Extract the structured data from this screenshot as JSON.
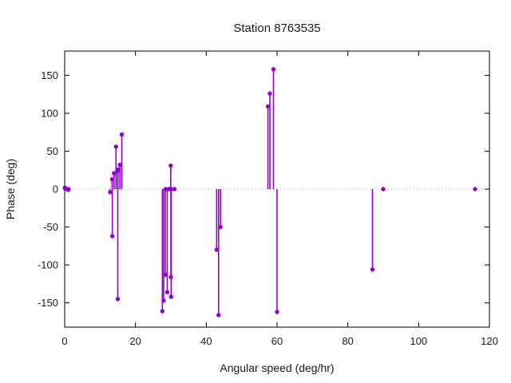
{
  "chart_data": {
    "type": "stem",
    "title": "Station 8763535",
    "xlabel": "Angular speed (deg/hr)",
    "ylabel": "Phase (deg)",
    "xlim": [
      0,
      120
    ],
    "ylim": [
      -182,
      182
    ],
    "xticks": [
      0,
      20,
      40,
      60,
      80,
      100,
      120
    ],
    "yticks": [
      -150,
      -100,
      -50,
      0,
      50,
      100,
      150
    ],
    "grid": false,
    "zero_line": true,
    "legend": "none",
    "baseline": 0,
    "colors": {
      "marker": "#9400d3",
      "stem": "#9400d3",
      "axis": "#000000",
      "text": "#1a1a1a",
      "zero_line": "#9e9e9e",
      "background": "#ffffff"
    },
    "points": [
      [
        0.04,
        1
      ],
      [
        0.08,
        2
      ],
      [
        0.54,
        0
      ],
      [
        1.02,
        -1
      ],
      [
        1.1,
        0
      ],
      [
        12.85,
        -4
      ],
      [
        13.4,
        13
      ],
      [
        13.47,
        -62
      ],
      [
        13.94,
        21
      ],
      [
        14.5,
        56
      ],
      [
        14.96,
        24
      ],
      [
        15.0,
        -145
      ],
      [
        15.04,
        26
      ],
      [
        15.59,
        32
      ],
      [
        16.14,
        72
      ],
      [
        27.6,
        -161
      ],
      [
        27.97,
        -147
      ],
      [
        28.44,
        -113
      ],
      [
        28.51,
        0
      ],
      [
        28.98,
        -136
      ],
      [
        29.46,
        0
      ],
      [
        29.53,
        0
      ],
      [
        29.96,
        31
      ],
      [
        30.0,
        -116
      ],
      [
        30.04,
        0
      ],
      [
        30.08,
        -142
      ],
      [
        31.02,
        0
      ],
      [
        42.93,
        -80
      ],
      [
        43.48,
        -166
      ],
      [
        44.03,
        -50
      ],
      [
        57.42,
        109
      ],
      [
        57.97,
        126
      ],
      [
        58.98,
        158
      ],
      [
        60.0,
        -162
      ],
      [
        86.95,
        -106
      ],
      [
        90.0,
        0
      ],
      [
        115.94,
        0
      ]
    ]
  }
}
